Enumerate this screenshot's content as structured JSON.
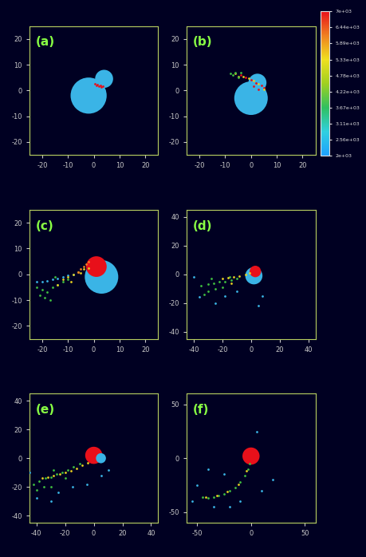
{
  "chart_data": [
    {
      "type": "scatter",
      "title": "(a)",
      "xlim": [
        -25,
        25
      ],
      "ylim": [
        -25,
        25
      ],
      "xticks": [
        -20,
        -10,
        0,
        10,
        20
      ],
      "yticks": [
        -20,
        -10,
        0,
        10,
        20
      ],
      "marker": "o",
      "bodies": [
        {
          "x": -2,
          "y": -2,
          "radius": 7,
          "color": "#3ab4e6"
        },
        {
          "x": 4,
          "y": 4.5,
          "radius": 3.5,
          "color": "#3ab4e6"
        }
      ],
      "series": [
        {
          "color": "#e8101a",
          "x": [
            0.5,
            1.5,
            2.5,
            3.5,
            1,
            2,
            3
          ],
          "y": [
            2.6,
            2.3,
            1.9,
            1.5,
            2.0,
            1.6,
            1.2
          ]
        }
      ]
    },
    {
      "type": "scatter",
      "title": "(b)",
      "xlim": [
        -25,
        25
      ],
      "ylim": [
        -25,
        25
      ],
      "xticks": [
        -20,
        -10,
        0,
        10,
        20
      ],
      "yticks": [
        -20,
        -10,
        0,
        10,
        20
      ],
      "marker": "o",
      "bodies": [
        {
          "x": 0,
          "y": -3,
          "radius": 6.5,
          "color": "#3ab4e6"
        },
        {
          "x": 2.5,
          "y": 3,
          "radius": 3.5,
          "color": "#3ab4e6"
        }
      ],
      "series": [
        {
          "color": "#e8101a",
          "x": [
            -4,
            -2,
            0,
            2,
            4,
            5,
            3,
            1
          ],
          "y": [
            6,
            5,
            4,
            3,
            2,
            1,
            0.5,
            1.5
          ]
        },
        {
          "color": "#e8d020",
          "x": [
            -6,
            -5,
            -3,
            -1,
            1,
            3,
            5
          ],
          "y": [
            6.5,
            5.5,
            5.5,
            4.8,
            3.8,
            2.6,
            0.3
          ]
        },
        {
          "color": "#40c040",
          "x": [
            -7,
            -6,
            -4,
            -5,
            -8
          ],
          "y": [
            6,
            7,
            7,
            5,
            6.5
          ]
        }
      ],
      "colorbar": {
        "colors": [
          "#1ea0ff",
          "#30d0e0",
          "#30c060",
          "#a0d020",
          "#f0e020",
          "#f08020",
          "#e8101a"
        ],
        "range": [
          2000,
          7000
        ],
        "ticks": [
          {
            "value": 2000,
            "label": "2e+03"
          },
          {
            "value": 2560,
            "label": "2.56e+03"
          },
          {
            "value": 3110,
            "label": "3.11e+03"
          },
          {
            "value": 3670,
            "label": "3.67e+03"
          },
          {
            "value": 4220,
            "label": "4.22e+03"
          },
          {
            "value": 4780,
            "label": "4.78e+03"
          },
          {
            "value": 5330,
            "label": "5.33e+03"
          },
          {
            "value": 5890,
            "label": "5.89e+03"
          },
          {
            "value": 6440,
            "label": "6.44e+03"
          },
          {
            "value": 7000,
            "label": "7e+03"
          }
        ]
      }
    },
    {
      "type": "scatter",
      "title": "(c)",
      "xlim": [
        -25,
        25
      ],
      "ylim": [
        -25,
        25
      ],
      "xticks": [
        -20,
        -10,
        0,
        10,
        20
      ],
      "yticks": [
        -20,
        -10,
        0,
        10,
        20
      ],
      "marker": "o",
      "bodies": [
        {
          "x": 3,
          "y": -1,
          "radius": 6.5,
          "color": "#3ab4e6"
        },
        {
          "x": 1,
          "y": 3,
          "radius": 4,
          "color": "#e8101a"
        }
      ],
      "series": [
        {
          "color": "#3ab4e6",
          "x": [
            -22,
            -20,
            -18,
            -16,
            -14,
            -12,
            -10,
            -8
          ],
          "y": [
            -3,
            -3,
            -2.5,
            -2,
            -1.5,
            -1,
            -0.5,
            0
          ]
        },
        {
          "color": "#40c040",
          "x": [
            -22,
            -20,
            -18,
            -16,
            -14,
            -12,
            -10,
            -21,
            -19,
            -17,
            -15
          ],
          "y": [
            -5,
            -6,
            -7,
            -5,
            -4,
            -3,
            -2,
            -8,
            -9,
            -10,
            -1
          ]
        },
        {
          "color": "#e8d020",
          "x": [
            -12,
            -10,
            -8,
            -6,
            -4,
            -2,
            -14,
            -9,
            -5
          ],
          "y": [
            -2,
            -1,
            0,
            1,
            2,
            2.5,
            -4,
            -3,
            0.5
          ]
        },
        {
          "color": "#f08020",
          "x": [
            -4,
            -3,
            -2,
            -5,
            -6
          ],
          "y": [
            3,
            4,
            5,
            2,
            1
          ]
        }
      ]
    },
    {
      "type": "scatter",
      "title": "(d)",
      "xlim": [
        -45,
        45
      ],
      "ylim": [
        -45,
        45
      ],
      "xticks": [
        -40,
        -20,
        0,
        20,
        40
      ],
      "yticks": [
        -40,
        -20,
        0,
        20,
        40
      ],
      "marker": "o",
      "bodies": [
        {
          "x": 2,
          "y": -1,
          "radius": 6,
          "color": "#3ab4e6"
        },
        {
          "x": 3,
          "y": 2,
          "radius": 4,
          "color": "#e8101a"
        }
      ],
      "series": [
        {
          "color": "#40c040",
          "x": [
            -35,
            -30,
            -26,
            -22,
            -18,
            -14,
            -10,
            -30,
            -25,
            -20,
            -15,
            -28,
            -33
          ],
          "y": [
            -8,
            -7,
            -6,
            -5,
            -5,
            -4,
            -3,
            -12,
            -10,
            -9,
            -2,
            -3,
            -14
          ]
        },
        {
          "color": "#e8d020",
          "x": [
            -20,
            -16,
            -12,
            -8,
            -4,
            -1,
            -14
          ],
          "y": [
            -3,
            -2.5,
            -2,
            -1,
            0,
            1,
            -6
          ]
        },
        {
          "color": "#3ab4e6",
          "x": [
            -40,
            -36,
            -25,
            -18,
            -10,
            5,
            8
          ],
          "y": [
            -2,
            -16,
            -20,
            -15,
            -12,
            -22,
            -15
          ]
        }
      ]
    },
    {
      "type": "scatter",
      "title": "(e)",
      "xlim": [
        -45,
        45
      ],
      "ylim": [
        -45,
        45
      ],
      "xticks": [
        -40,
        -20,
        0,
        20,
        40
      ],
      "yticks": [
        -40,
        -20,
        0,
        20,
        40
      ],
      "marker": "o",
      "bodies": [
        {
          "x": 0,
          "y": 2,
          "radius": 6,
          "color": "#e8101a"
        },
        {
          "x": 5,
          "y": 0,
          "radius": 3.5,
          "color": "#3ab4e6"
        }
      ],
      "series": [
        {
          "color": "#40c040",
          "x": [
            -42,
            -38,
            -34,
            -30,
            -26,
            -22,
            -18,
            -14,
            -10,
            -40,
            -35,
            -30,
            -28,
            -20
          ],
          "y": [
            -18,
            -16,
            -14,
            -13,
            -11,
            -10,
            -8,
            -6,
            -4,
            -22,
            -20,
            -20,
            -8,
            -14
          ]
        },
        {
          "color": "#e8d020",
          "x": [
            -36,
            -32,
            -28,
            -24,
            -20,
            -16,
            -12,
            -8,
            -4
          ],
          "y": [
            -14,
            -13,
            -12,
            -11,
            -10,
            -9,
            -7,
            -5,
            -3
          ]
        },
        {
          "color": "#3ab4e6",
          "x": [
            -45,
            -40,
            -25,
            -15,
            -5,
            5,
            10,
            -30
          ],
          "y": [
            -10,
            -28,
            -24,
            -20,
            -18,
            -12,
            -8,
            -30
          ]
        }
      ]
    },
    {
      "type": "scatter",
      "title": "(f)",
      "xlim": [
        -60,
        60
      ],
      "ylim": [
        -60,
        60
      ],
      "xticks": [
        -50,
        0,
        50
      ],
      "yticks": [
        -50,
        0,
        50
      ],
      "marker": "o",
      "bodies": [
        {
          "x": 0,
          "y": 2,
          "radius": 8,
          "color": "#e8101a"
        }
      ],
      "series": [
        {
          "color": "#40c040",
          "x": [
            -45,
            -40,
            -35,
            -30,
            -25,
            -20,
            -15,
            -10,
            -6,
            -3,
            -1
          ],
          "y": [
            -36,
            -37,
            -36,
            -35,
            -33,
            -30,
            -27,
            -22,
            -16,
            -10,
            -5
          ]
        },
        {
          "color": "#e8d020",
          "x": [
            -42,
            -32,
            -22,
            -12,
            -4
          ],
          "y": [
            -36,
            -35,
            -31,
            -24,
            -12
          ]
        },
        {
          "color": "#3ab4e6",
          "x": [
            -55,
            -50,
            -35,
            -20,
            -10,
            10,
            20,
            -25,
            -40,
            5
          ],
          "y": [
            -40,
            -25,
            -45,
            -45,
            -40,
            -30,
            -20,
            -15,
            -10,
            25
          ]
        }
      ]
    }
  ]
}
